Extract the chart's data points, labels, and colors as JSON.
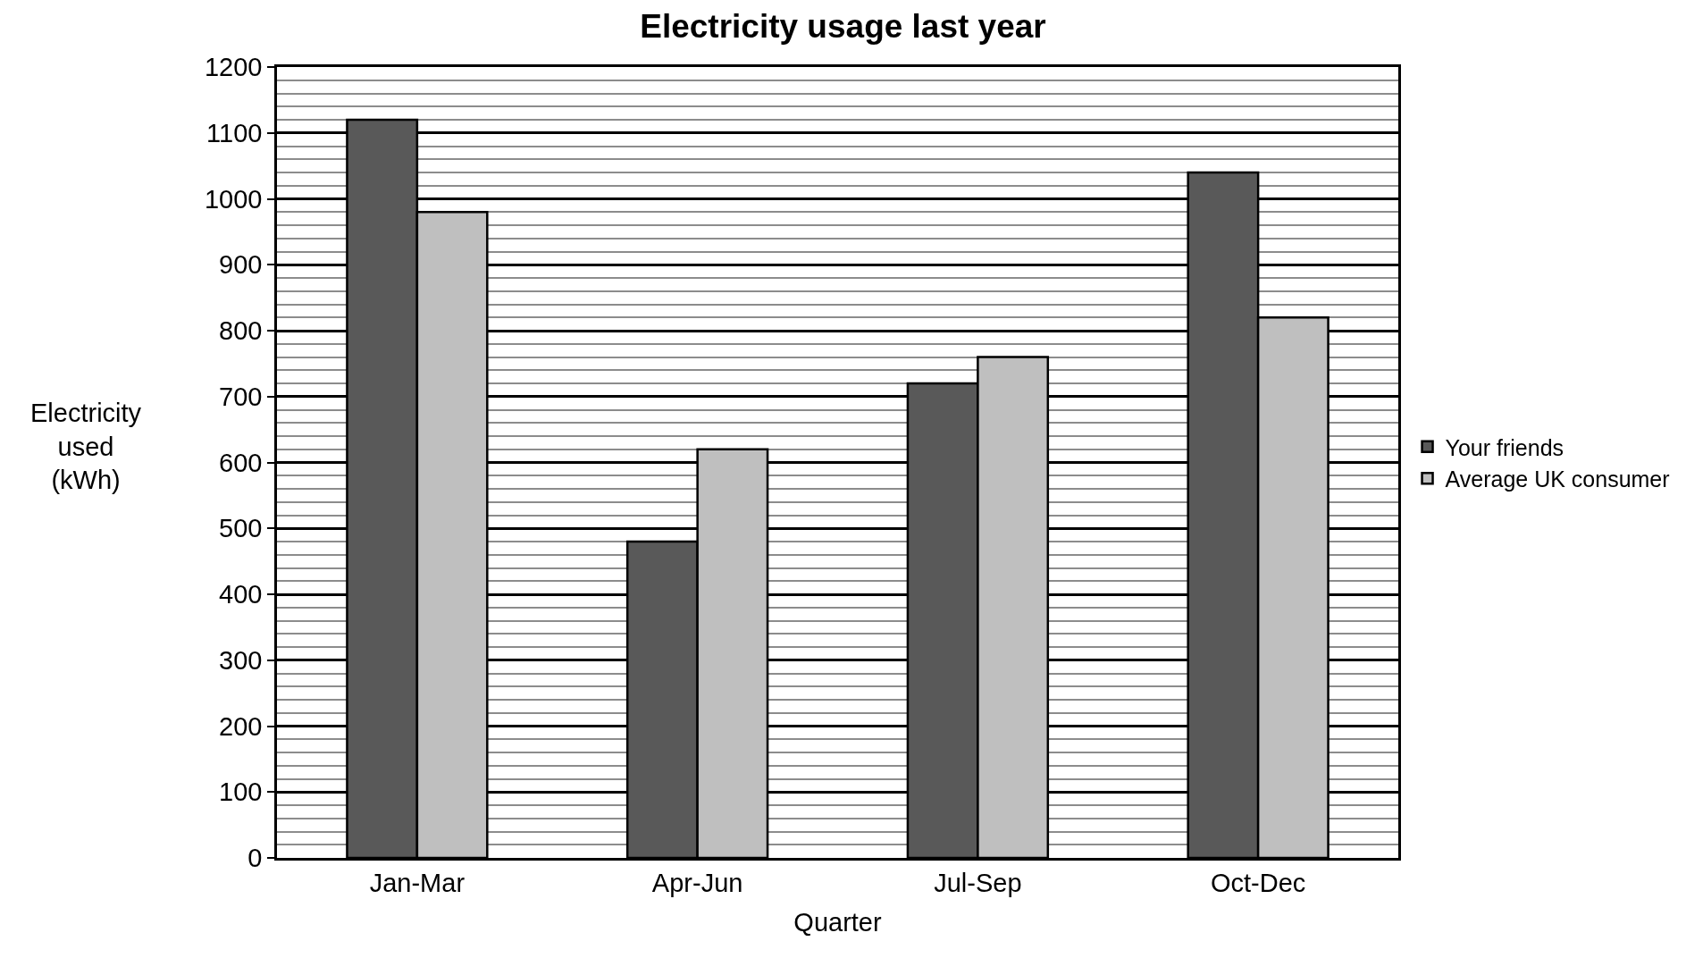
{
  "chart_data": {
    "type": "bar",
    "title": "Electricity usage last year",
    "xlabel": "Quarter",
    "ylabel": "Electricity used (kWh)",
    "categories": [
      "Jan-Mar",
      "Apr-Jun",
      "Jul-Sep",
      "Oct-Dec"
    ],
    "series": [
      {
        "name": "Your friends",
        "color": "#595959",
        "values": [
          1120,
          480,
          720,
          1040
        ]
      },
      {
        "name": "Average UK consumer",
        "color": "#bfbfbf",
        "values": [
          980,
          620,
          760,
          820
        ]
      }
    ],
    "ylim": [
      0,
      1200
    ],
    "yticks": [
      0,
      100,
      200,
      300,
      400,
      500,
      600,
      700,
      800,
      900,
      1000,
      1100,
      1200
    ],
    "grid": "y",
    "legend": "right"
  }
}
